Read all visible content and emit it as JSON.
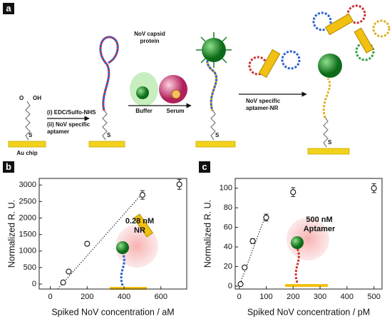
{
  "schematic": {
    "label": "a",
    "chip": "Au chip",
    "oh": "OH",
    "o": "O",
    "s": "S",
    "step1": "(i) EDC/Sulfo-NHS",
    "step2": "(ii) NoV specific",
    "step2b": "aptamer",
    "protein1": "NoV capsid",
    "protein2": "protein",
    "buffer": "Buffer",
    "serum": "Serum",
    "step3": "NoV specific",
    "step3b": "aptamer-NR"
  },
  "chart_data": [
    {
      "type": "scatter",
      "label": "b",
      "xlabel": "Spiked NoV concentration / aM",
      "ylabel": "Normalized R. U.",
      "x": [
        70,
        100,
        200,
        500,
        700
      ],
      "values": [
        50,
        380,
        1220,
        2700,
        3020
      ],
      "errors": [
        40,
        40,
        60,
        130,
        150
      ],
      "fit": {
        "x": [
          40,
          500
        ],
        "y": [
          -150,
          2750
        ]
      },
      "annotation": [
        "0.28 nM",
        "NR"
      ],
      "xlim": [
        -60,
        740
      ],
      "ylim": [
        -150,
        3200
      ],
      "xticks": [
        0,
        200,
        400,
        600
      ],
      "yticks": [
        0,
        500,
        1000,
        1500,
        2000,
        2500,
        3000
      ],
      "color": "#222"
    },
    {
      "type": "scatter",
      "label": "c",
      "xlabel": "Spiked NoV concentration / pM",
      "ylabel": "Normalized R. U.",
      "x": [
        5,
        20,
        50,
        100,
        200,
        500
      ],
      "values": [
        2,
        19,
        46,
        70,
        96,
        100
      ],
      "errors": [
        1.5,
        2,
        2.5,
        3.5,
        4.5,
        4.5
      ],
      "fit": {
        "x": [
          0,
          100
        ],
        "y": [
          0,
          74
        ]
      },
      "annotation": [
        "500 nM",
        "Aptamer"
      ],
      "xlim": [
        -15,
        530
      ],
      "ylim": [
        -3,
        110
      ],
      "xticks": [
        0,
        100,
        200,
        300,
        400,
        500
      ],
      "yticks": [
        0,
        20,
        40,
        60,
        80,
        100
      ],
      "color": "#222"
    }
  ]
}
